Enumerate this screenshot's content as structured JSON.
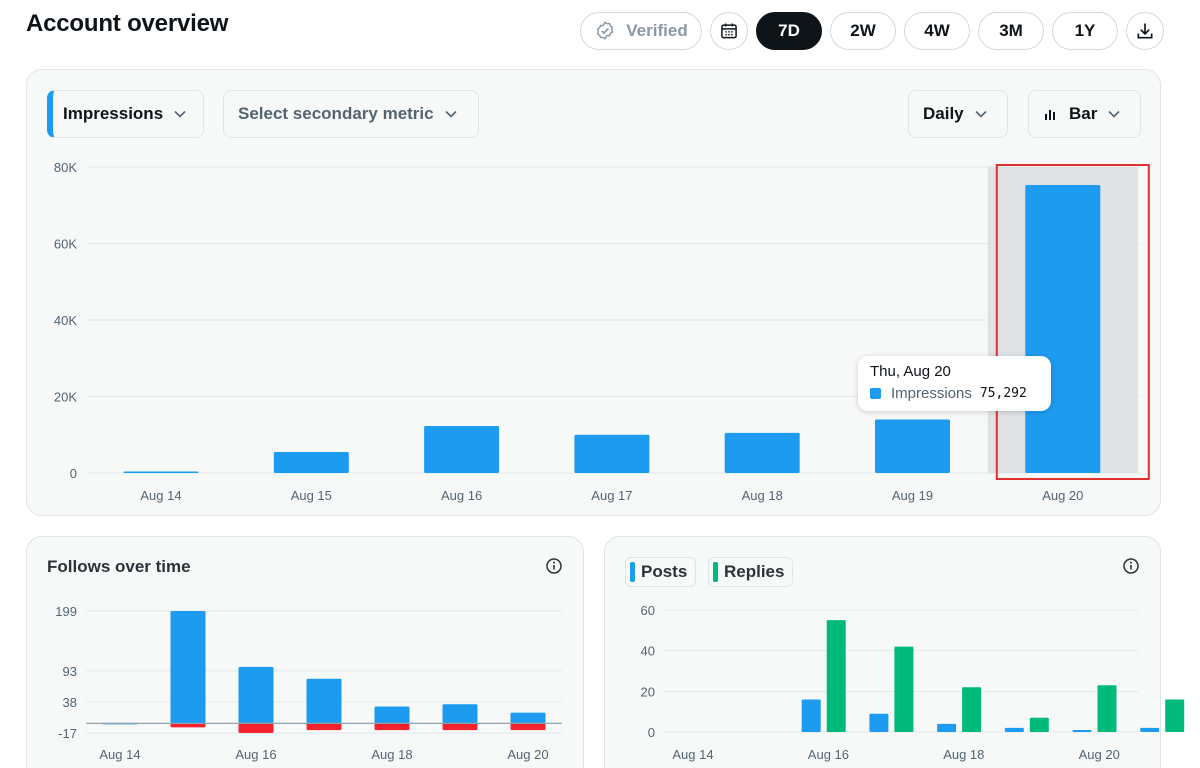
{
  "header": {
    "title": "Account overview",
    "verified_label": "Verified",
    "ranges": [
      {
        "label": "7D",
        "active": true
      },
      {
        "label": "2W",
        "active": false
      },
      {
        "label": "4W",
        "active": false
      },
      {
        "label": "3M",
        "active": false
      },
      {
        "label": "1Y",
        "active": false
      }
    ],
    "icons": {
      "verified": "verified-badge-icon",
      "calendar": "calendar-icon",
      "download": "download-icon"
    }
  },
  "main_chart": {
    "primary_metric": "Impressions",
    "secondary_metric_placeholder": "Select secondary metric",
    "interval": "Daily",
    "chart_type_label": "Bar",
    "tooltip": {
      "date": "Thu, Aug 20",
      "metric": "Impressions",
      "value": "75,292"
    }
  },
  "follows_card": {
    "title": "Follows over time"
  },
  "posts_card": {
    "legend": [
      {
        "label": "Posts",
        "color": "#1d9bf0"
      },
      {
        "label": "Replies",
        "color": "#00ba7c"
      }
    ]
  },
  "colors": {
    "blue": "#1d9bf0",
    "green": "#00ba7c",
    "red": "#f4212e",
    "highlight": "#e03030"
  },
  "chart_data": [
    {
      "type": "bar",
      "categories": [
        "Aug 14",
        "Aug 15",
        "Aug 16",
        "Aug 17",
        "Aug 18",
        "Aug 19",
        "Aug 20"
      ],
      "series": [
        {
          "name": "Impressions",
          "values": [
            300,
            5500,
            12300,
            10000,
            10500,
            14000,
            75292
          ]
        }
      ],
      "ylim": [
        0,
        80000
      ],
      "yticks": [
        0,
        20000,
        40000,
        60000,
        80000
      ],
      "ytick_labels": [
        "0",
        "20K",
        "40K",
        "60K",
        "80K"
      ],
      "grid": true,
      "highlighted_category": "Aug 20"
    },
    {
      "type": "bar",
      "categories": [
        "Aug 14",
        "Aug 15",
        "Aug 16",
        "Aug 17",
        "Aug 18",
        "Aug 19",
        "Aug 20"
      ],
      "xtick_labels": [
        "Aug 14",
        "Aug 16",
        "Aug 18",
        "Aug 20"
      ],
      "series": [
        {
          "values": [
            1,
            199,
            100,
            79,
            30,
            34,
            19
          ]
        },
        {
          "values": [
            0,
            -7,
            -17,
            -12,
            -12,
            -12,
            -12
          ]
        }
      ],
      "ylim": [
        -17,
        199
      ],
      "yticks": [
        -17,
        38,
        93,
        199
      ],
      "grid": true
    },
    {
      "type": "bar",
      "categories": [
        "Aug 14",
        "Aug 15",
        "Aug 16",
        "Aug 17",
        "Aug 18",
        "Aug 19",
        "Aug 20"
      ],
      "xtick_labels": [
        "Aug 14",
        "Aug 16",
        "Aug 18",
        "Aug 20"
      ],
      "series": [
        {
          "name": "Posts",
          "values": [
            0,
            16,
            9,
            4,
            2,
            1,
            2
          ]
        },
        {
          "name": "Replies",
          "values": [
            0,
            55,
            42,
            22,
            7,
            23,
            16
          ]
        }
      ],
      "ylim": [
        0,
        60
      ],
      "yticks": [
        0,
        20,
        40,
        60
      ],
      "grid": true
    }
  ]
}
